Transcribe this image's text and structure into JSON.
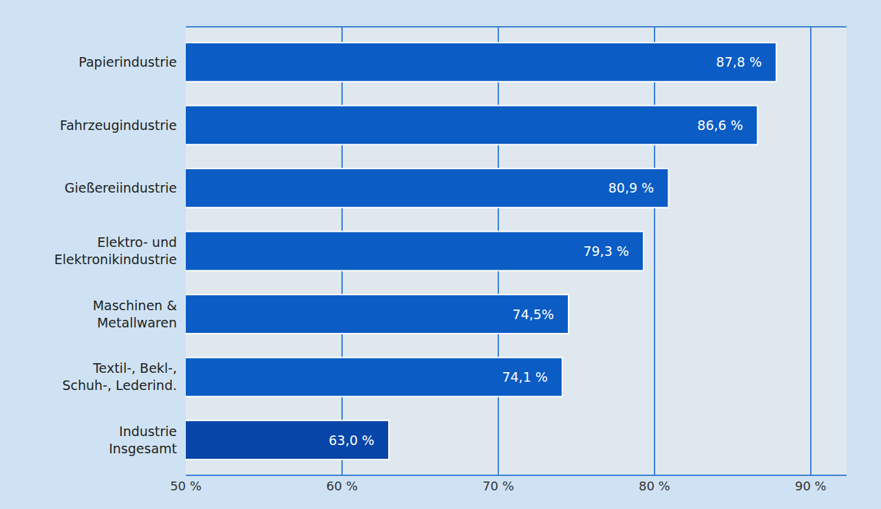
{
  "chart_data": {
    "type": "bar",
    "orientation": "horizontal",
    "categories": [
      "Papierindustrie",
      "Fahrzeugindustrie",
      "Gießereiindustrie",
      "Elektro- und\nElektronikindustrie",
      "Maschinen &\nMetallwaren",
      "Textil-, Bekl-,\nSchuh-, Lederind.",
      "Industrie\nInsgesamt"
    ],
    "values": [
      87.8,
      86.6,
      80.9,
      79.3,
      74.5,
      74.1,
      63.0
    ],
    "value_labels": [
      "87,8 %",
      "86,6 %",
      "80,9 %",
      "79,3 %",
      "74,5%",
      "74,1 %",
      "63,0 %"
    ],
    "colors": [
      "#0b5cc5",
      "#0b5cc5",
      "#0b5cc5",
      "#0b5cc5",
      "#0b5cc5",
      "#0b5cc5",
      "#0845a8"
    ],
    "data_labels": true,
    "xlim": [
      50,
      92.3
    ],
    "xticks": [
      {
        "value": 50,
        "label": "50 %"
      },
      {
        "value": 60,
        "label": "60 %"
      },
      {
        "value": 70,
        "label": "70 %"
      },
      {
        "value": 80,
        "label": "80 %"
      },
      {
        "value": 90,
        "label": "90 %"
      }
    ],
    "grid": true
  }
}
